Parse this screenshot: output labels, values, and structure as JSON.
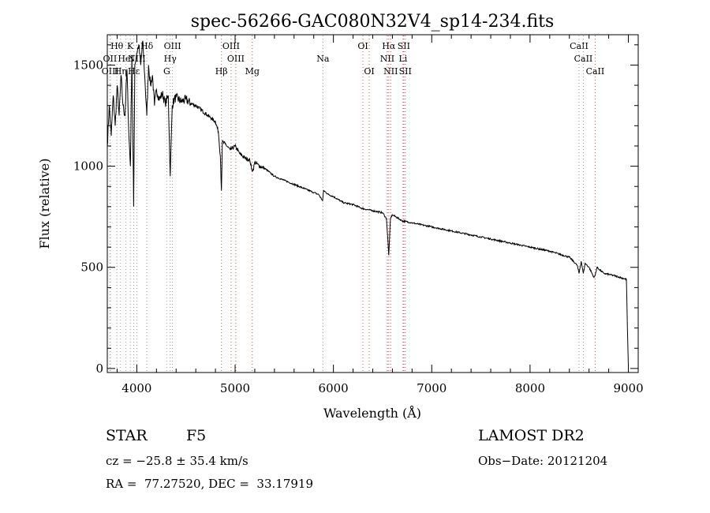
{
  "chart_data": {
    "type": "line",
    "title": "spec-56266-GAC080N32V4_sp14-234.fits",
    "xlabel": "Wavelength (Å)",
    "ylabel": "Flux (relative)",
    "xlim": [
      3700,
      9100
    ],
    "ylim": [
      -20,
      1650
    ],
    "x_ticks": [
      4000,
      5000,
      6000,
      7000,
      8000,
      9000
    ],
    "y_ticks": [
      0,
      500,
      1000,
      1500
    ],
    "grid": false,
    "series": [
      {
        "x": [
          3700,
          3720,
          3740,
          3760,
          3780,
          3800,
          3820,
          3840,
          3860,
          3880,
          3900,
          3920,
          3935,
          3950,
          3968,
          3980,
          4000,
          4020,
          4040,
          4060,
          4080,
          4102,
          4120,
          4140,
          4160,
          4180,
          4200,
          4230,
          4260,
          4290,
          4320,
          4340,
          4360,
          4380,
          4400,
          4450,
          4500,
          4550,
          4600,
          4650,
          4700,
          4750,
          4800,
          4830,
          4850,
          4861,
          4870,
          4900,
          4950,
          5000,
          5050,
          5100,
          5150,
          5172,
          5183,
          5200,
          5250,
          5300,
          5400,
          5500,
          5600,
          5700,
          5800,
          5850,
          5890,
          5900,
          5950,
          6000,
          6100,
          6200,
          6300,
          6400,
          6500,
          6540,
          6563,
          6580,
          6600,
          6700,
          6800,
          6900,
          7000,
          7200,
          7400,
          7600,
          7800,
          8000,
          8200,
          8400,
          8480,
          8498,
          8520,
          8542,
          8560,
          8600,
          8650,
          8662,
          8680,
          8750,
          8850,
          8950,
          8980,
          8990,
          9000
        ],
        "values": [
          1100,
          1300,
          1150,
          1350,
          1200,
          1400,
          1250,
          1450,
          1300,
          1250,
          1480,
          1150,
          1000,
          1550,
          800,
          1500,
          1560,
          1600,
          1500,
          1620,
          1450,
          1250,
          1500,
          1400,
          1450,
          1300,
          1380,
          1330,
          1360,
          1310,
          1350,
          950,
          1300,
          1330,
          1340,
          1320,
          1330,
          1310,
          1300,
          1280,
          1260,
          1240,
          1220,
          1170,
          1050,
          880,
          1120,
          1110,
          1080,
          1100,
          1060,
          1040,
          1030,
          980,
          980,
          1020,
          1000,
          990,
          950,
          930,
          910,
          890,
          870,
          860,
          830,
          880,
          860,
          850,
          820,
          810,
          790,
          780,
          770,
          740,
          560,
          740,
          760,
          730,
          720,
          710,
          700,
          680,
          660,
          640,
          620,
          600,
          580,
          550,
          510,
          470,
          530,
          470,
          520,
          500,
          450,
          460,
          500,
          470,
          460,
          445,
          440,
          200,
          10
        ]
      }
    ],
    "spectral_lines": [
      {
        "name": "Hθ",
        "w": 3798,
        "row": 0,
        "color": "#9a9a9a"
      },
      {
        "name": "K",
        "w": 3934,
        "row": 0,
        "color": "#9a9a9a"
      },
      {
        "name": "Hδ",
        "w": 4102,
        "row": 0,
        "color": "#9a9a9a"
      },
      {
        "name": "OIII",
        "w": 4363,
        "row": 0,
        "color": "#9a9a9a"
      },
      {
        "name": "OIII",
        "w": 4959,
        "row": 0,
        "color": "#d05050"
      },
      {
        "name": "OI",
        "w": 6300,
        "row": 0,
        "color": "#d05050"
      },
      {
        "name": "Hα",
        "w": 6563,
        "row": 0,
        "color": "#d05050"
      },
      {
        "name": "SII",
        "w": 6716,
        "row": 0,
        "color": "#d05050"
      },
      {
        "name": "CaII",
        "w": 8498,
        "row": 0,
        "color": "#9a9a9a"
      },
      {
        "name": "OII",
        "w": 3727,
        "row": 1,
        "color": "#9a9a9a"
      },
      {
        "name": "HeI",
        "w": 3889,
        "row": 1,
        "color": "#9a9a9a"
      },
      {
        "name": "NIII",
        "w": 4000,
        "row": 1,
        "color": "#9a9a9a"
      },
      {
        "name": "Hγ",
        "w": 4340,
        "row": 1,
        "color": "#9a9a9a"
      },
      {
        "name": "OIII",
        "w": 5007,
        "row": 1,
        "color": "#d05050"
      },
      {
        "name": "Na",
        "w": 5893,
        "row": 1,
        "color": "#9a9a9a"
      },
      {
        "name": "NII",
        "w": 6548,
        "row": 1,
        "color": "#d05050"
      },
      {
        "name": "Li",
        "w": 6708,
        "row": 1,
        "color": "#d05050"
      },
      {
        "name": "CaII",
        "w": 8542,
        "row": 1,
        "color": "#9a9a9a"
      },
      {
        "name": "OIII",
        "w": 3730,
        "row": 2,
        "color": "#9a9a9a"
      },
      {
        "name": "Hη",
        "w": 3835,
        "row": 2,
        "color": "#9a9a9a"
      },
      {
        "name": "Hε",
        "w": 3970,
        "row": 2,
        "color": "#9a9a9a"
      },
      {
        "name": "G",
        "w": 4305,
        "row": 2,
        "color": "#9a9a9a"
      },
      {
        "name": "Hβ",
        "w": 4861,
        "row": 2,
        "color": "#d05050"
      },
      {
        "name": "Mg",
        "w": 5175,
        "row": 2,
        "color": "#d05050"
      },
      {
        "name": "OI",
        "w": 6364,
        "row": 2,
        "color": "#d05050"
      },
      {
        "name": "NII",
        "w": 6583,
        "row": 2,
        "color": "#d05050"
      },
      {
        "name": "SII",
        "w": 6731,
        "row": 2,
        "color": "#d05050"
      },
      {
        "name": "CaII",
        "w": 8662,
        "row": 2,
        "color": "#d05050"
      }
    ]
  },
  "info": {
    "object_class": "STAR",
    "subclass": "F5",
    "survey": "LAMOST DR2",
    "cz": "cz = −25.8 ± 35.4 km/s",
    "obs_date": "Obs−Date: 20121204",
    "coords": "RA =  77.27520, DEC =  33.17919"
  }
}
